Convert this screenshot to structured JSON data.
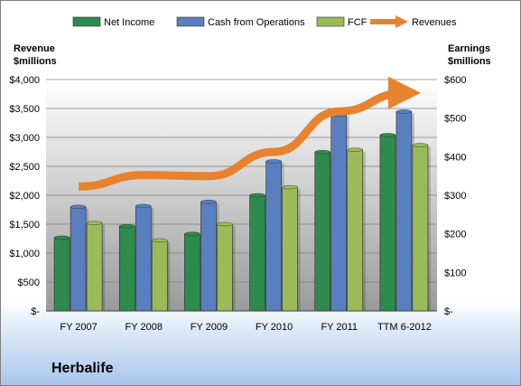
{
  "company": "Herbalife",
  "chart_data": {
    "type": "bar",
    "categories": [
      "FY 2007",
      "FY 2008",
      "FY 2009",
      "FY 2010",
      "FY 2011",
      "TTM 6-2012"
    ],
    "left_axis": {
      "label_line1": "Revenue",
      "label_line2": "$millions",
      "range": [
        0,
        4000
      ],
      "tick_labels": [
        "$-",
        "$500",
        "$1,000",
        "$1,500",
        "$2,000",
        "$2,500",
        "$3,000",
        "$3,500",
        "$4,000"
      ]
    },
    "right_axis": {
      "label_line1": "Earnings",
      "label_line2": "$millions",
      "range": [
        0,
        600
      ],
      "tick_labels": [
        "$-",
        "$100",
        "$200",
        "$300",
        "$400",
        "$500",
        "$600"
      ]
    },
    "series": [
      {
        "name": "Net Income",
        "type": "bar",
        "axis": "right",
        "color": "#2e8b4e",
        "values": [
          190,
          220,
          200,
          300,
          412,
          456
        ]
      },
      {
        "name": "Cash from Operations",
        "type": "bar",
        "axis": "right",
        "color": "#5a7fbf",
        "values": [
          270,
          272,
          283,
          388,
          510,
          517
        ]
      },
      {
        "name": "FCF",
        "type": "bar",
        "axis": "right",
        "color": "#9bbb59",
        "values": [
          228,
          183,
          225,
          321,
          418,
          430
        ]
      },
      {
        "name": "Revenues",
        "type": "line",
        "axis": "left",
        "color": "#e8822e",
        "values": [
          2150,
          2350,
          2330,
          2750,
          3450,
          3770
        ]
      }
    ],
    "grid": true,
    "legend_position": "top"
  }
}
